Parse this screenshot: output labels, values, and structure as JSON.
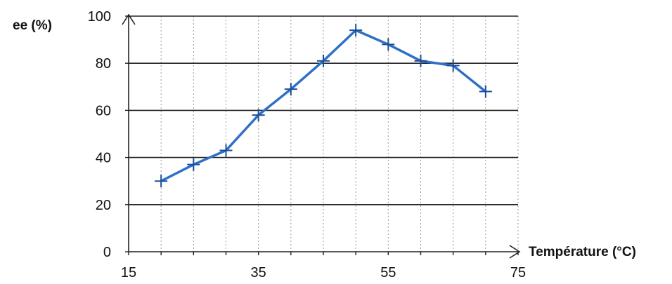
{
  "chart_data": {
    "type": "line",
    "title": "",
    "xlabel": "Température (°C)",
    "ylabel": "ee (%)",
    "xlim": [
      15,
      75
    ],
    "ylim": [
      0,
      100
    ],
    "xticks": [
      15,
      35,
      55,
      75
    ],
    "yticks": [
      0,
      20,
      40,
      60,
      80,
      100
    ],
    "grid": true,
    "x": [
      20,
      25,
      30,
      35,
      40,
      45,
      50,
      55,
      60,
      65,
      70
    ],
    "series": [
      {
        "name": "",
        "color": "#2f6fc6",
        "marker": "plus",
        "values": [
          30,
          37,
          43,
          58,
          69,
          81,
          94,
          88,
          81,
          79,
          68
        ]
      }
    ]
  }
}
